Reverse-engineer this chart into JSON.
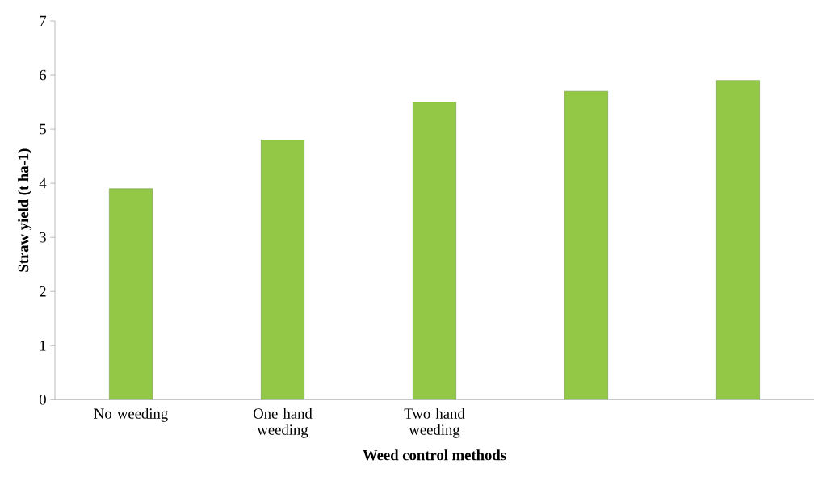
{
  "chart_data": {
    "type": "bar",
    "categories": [
      "No weeding",
      "One hand weeding",
      "Two hand weeding",
      null,
      null
    ],
    "values": [
      3.9,
      4.8,
      5.5,
      5.7,
      5.9
    ],
    "color": "#92c846",
    "xlabel": "Weed control methods",
    "ylabel": "Straw yield (t ha-1)",
    "ylim": [
      0,
      7
    ],
    "yticks": [
      0,
      1,
      2,
      3,
      4,
      5,
      6,
      7
    ],
    "grid": false
  }
}
